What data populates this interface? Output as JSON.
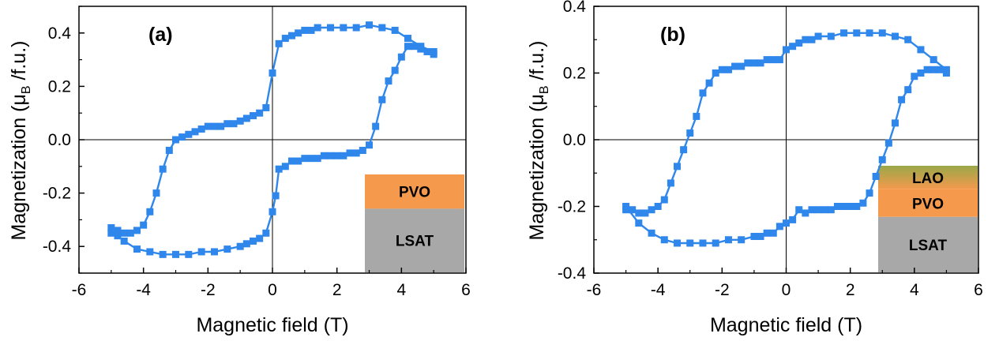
{
  "figure": {
    "colors": {
      "series": "#2f86eb",
      "axis": "#000000",
      "pvo": "#f5994c",
      "lsat": "#a8a8a8",
      "lao": "#9aa84a"
    }
  },
  "chart_data": [
    {
      "type": "line",
      "panel_label": "(a)",
      "xlabel": "Magnetic field (T)",
      "ylabel": "Magnetization (μB /f.u.)",
      "ylabel_parts": {
        "pre": "Magnetization (μ",
        "sub": "B",
        "post": " /f.u.)"
      },
      "xlim": [
        -6,
        6
      ],
      "ylim": [
        -0.5,
        0.5
      ],
      "xticks": [
        -6,
        -4,
        -2,
        0,
        2,
        4,
        6
      ],
      "xtick_labels": [
        "-6",
        "-4",
        "-2",
        "0",
        "2",
        "4",
        "6"
      ],
      "yticks": [
        -0.4,
        -0.2,
        0.0,
        0.2,
        0.4
      ],
      "ytick_labels": [
        "-0.4",
        "-0.2",
        "0.0",
        "0.2",
        "0.4"
      ],
      "zero_lines": true,
      "marker": "square",
      "inset_layers": [
        {
          "label": "PVO",
          "color": "#f5994c",
          "fraction": 0.35
        },
        {
          "label": "LSAT",
          "color": "#a8a8a8",
          "fraction": 0.65
        }
      ],
      "series": [
        {
          "x": [
            5.0,
            4.8,
            4.6,
            4.4,
            4.2,
            4.0,
            3.8,
            3.6,
            3.4,
            3.2,
            3.0,
            2.8,
            2.6,
            2.4,
            2.2,
            2.0,
            1.8,
            1.6,
            1.4,
            1.2,
            1.0,
            0.8,
            0.6,
            0.4,
            0.2,
            0.1,
            0.0,
            -0.2,
            -0.4,
            -0.6,
            -0.8,
            -1.0,
            -1.4,
            -1.8,
            -2.2,
            -2.6,
            -3.0,
            -3.4,
            -3.8,
            -4.2,
            -4.6,
            -4.8,
            -5.0
          ],
          "y": [
            0.32,
            0.33,
            0.34,
            0.35,
            0.35,
            0.31,
            0.26,
            0.22,
            0.15,
            0.05,
            -0.02,
            -0.04,
            -0.05,
            -0.05,
            -0.06,
            -0.06,
            -0.06,
            -0.06,
            -0.07,
            -0.07,
            -0.07,
            -0.08,
            -0.08,
            -0.1,
            -0.11,
            -0.21,
            -0.27,
            -0.35,
            -0.37,
            -0.38,
            -0.39,
            -0.4,
            -0.41,
            -0.42,
            -0.42,
            -0.43,
            -0.43,
            -0.43,
            -0.42,
            -0.41,
            -0.38,
            -0.36,
            -0.35
          ]
        },
        {
          "x": [
            -5.0,
            -4.8,
            -4.6,
            -4.4,
            -4.2,
            -4.0,
            -3.8,
            -3.6,
            -3.4,
            -3.2,
            -3.0,
            -2.8,
            -2.6,
            -2.4,
            -2.2,
            -2.0,
            -1.8,
            -1.6,
            -1.4,
            -1.2,
            -1.0,
            -0.8,
            -0.6,
            -0.4,
            -0.2,
            0.0,
            0.2,
            0.4,
            0.6,
            0.8,
            1.0,
            1.2,
            1.4,
            1.8,
            2.2,
            2.6,
            3.0,
            3.4,
            3.8,
            4.2,
            4.6,
            5.0
          ],
          "y": [
            -0.33,
            -0.34,
            -0.35,
            -0.35,
            -0.34,
            -0.32,
            -0.27,
            -0.2,
            -0.11,
            -0.04,
            0.0,
            0.01,
            0.02,
            0.03,
            0.04,
            0.05,
            0.05,
            0.05,
            0.06,
            0.06,
            0.07,
            0.08,
            0.09,
            0.1,
            0.12,
            0.25,
            0.36,
            0.38,
            0.39,
            0.4,
            0.41,
            0.41,
            0.42,
            0.42,
            0.42,
            0.42,
            0.43,
            0.42,
            0.41,
            0.38,
            0.35,
            0.33
          ]
        }
      ]
    },
    {
      "type": "line",
      "panel_label": "(b)",
      "xlabel": "Magnetic field (T)",
      "ylabel": "Magnetization (μB /f.u.)",
      "ylabel_parts": {
        "pre": "Magnetization (μ",
        "sub": "B",
        "post": " /f.u.)"
      },
      "xlim": [
        -6,
        6
      ],
      "ylim": [
        -0.4,
        0.4
      ],
      "xticks": [
        -6,
        -4,
        -2,
        0,
        2,
        4,
        6
      ],
      "xtick_labels": [
        "-6",
        "-4",
        "-2",
        "0",
        "2",
        "4",
        "6"
      ],
      "yticks": [
        -0.4,
        -0.2,
        0.0,
        0.2,
        0.4
      ],
      "ytick_labels": [
        "-0.4",
        "-0.2",
        "0.0",
        "0.2",
        "0.4"
      ],
      "zero_lines": true,
      "marker": "square",
      "inset_layers": [
        {
          "label": "LAO",
          "color": "#9aa84a",
          "fraction": 0.22
        },
        {
          "label": "PVO",
          "color": "#f5994c",
          "fraction": 0.26
        },
        {
          "label": "LSAT",
          "color": "#a8a8a8",
          "fraction": 0.52
        }
      ],
      "series": [
        {
          "x": [
            5.0,
            4.8,
            4.6,
            4.4,
            4.2,
            4.0,
            3.8,
            3.6,
            3.4,
            3.2,
            3.0,
            2.8,
            2.6,
            2.4,
            2.2,
            2.0,
            1.8,
            1.6,
            1.4,
            1.2,
            1.0,
            0.8,
            0.6,
            0.4,
            0.2,
            0.0,
            -0.2,
            -0.4,
            -0.6,
            -0.8,
            -1.0,
            -1.4,
            -1.8,
            -2.2,
            -2.6,
            -3.0,
            -3.4,
            -3.8,
            -4.2,
            -4.6,
            -5.0
          ],
          "y": [
            0.2,
            0.21,
            0.21,
            0.21,
            0.2,
            0.19,
            0.15,
            0.12,
            0.05,
            -0.01,
            -0.06,
            -0.11,
            -0.16,
            -0.19,
            -0.2,
            -0.2,
            -0.2,
            -0.2,
            -0.21,
            -0.21,
            -0.21,
            -0.21,
            -0.22,
            -0.21,
            -0.24,
            -0.25,
            -0.26,
            -0.28,
            -0.28,
            -0.29,
            -0.29,
            -0.3,
            -0.3,
            -0.31,
            -0.31,
            -0.31,
            -0.31,
            -0.3,
            -0.28,
            -0.25,
            -0.2
          ]
        },
        {
          "x": [
            -5.0,
            -4.8,
            -4.6,
            -4.4,
            -4.2,
            -4.0,
            -3.8,
            -3.6,
            -3.4,
            -3.2,
            -3.0,
            -2.8,
            -2.6,
            -2.4,
            -2.2,
            -2.0,
            -1.8,
            -1.6,
            -1.4,
            -1.2,
            -1.0,
            -0.8,
            -0.6,
            -0.4,
            -0.2,
            0.0,
            0.2,
            0.4,
            0.6,
            0.8,
            1.0,
            1.4,
            1.8,
            2.2,
            2.6,
            3.0,
            3.4,
            3.8,
            4.2,
            4.6,
            5.0
          ],
          "y": [
            -0.21,
            -0.21,
            -0.22,
            -0.22,
            -0.21,
            -0.2,
            -0.18,
            -0.13,
            -0.08,
            -0.03,
            0.02,
            0.07,
            0.14,
            0.17,
            0.2,
            0.21,
            0.21,
            0.22,
            0.22,
            0.23,
            0.23,
            0.23,
            0.24,
            0.24,
            0.24,
            0.27,
            0.28,
            0.29,
            0.3,
            0.3,
            0.31,
            0.31,
            0.32,
            0.32,
            0.32,
            0.32,
            0.31,
            0.3,
            0.27,
            0.24,
            0.21
          ]
        }
      ]
    }
  ]
}
